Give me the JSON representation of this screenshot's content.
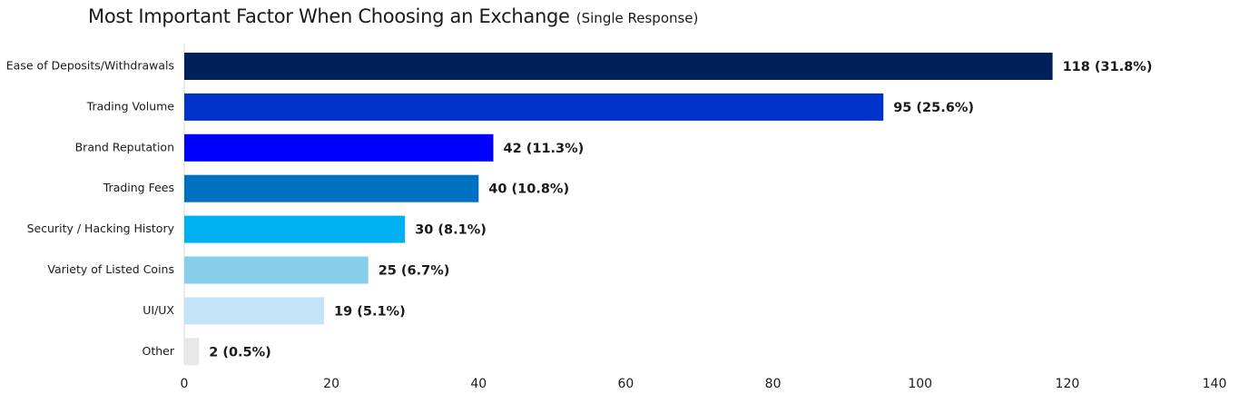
{
  "chart_data": {
    "type": "bar",
    "orientation": "horizontal",
    "title": "Most Important Factor When Choosing an Exchange",
    "subtitle": "(Single Response)",
    "categories": [
      "Ease of Deposits/Withdrawals",
      "Trading Volume",
      "Brand Reputation",
      "Trading Fees",
      "Security / Hacking History",
      "Variety of Listed Coins",
      "UI/UX",
      "Other"
    ],
    "values": [
      118,
      95,
      42,
      40,
      30,
      25,
      19,
      2
    ],
    "value_labels": [
      "118 (31.8%)",
      "95 (25.6%)",
      "42 (11.3%)",
      "40 (10.8%)",
      "30 (8.1%)",
      "25 (6.7%)",
      "19 (5.1%)",
      "2 (0.5%)"
    ],
    "colors": [
      "#00205B",
      "#0033CC",
      "#0000FF",
      "#0070C0",
      "#00B0F0",
      "#87CEEB",
      "#C5E3F6",
      "#E8E8E8"
    ],
    "xlim": [
      0,
      140
    ],
    "xticks": [
      0,
      20,
      40,
      60,
      80,
      100,
      120,
      140
    ],
    "grid": false,
    "legend": "none"
  }
}
